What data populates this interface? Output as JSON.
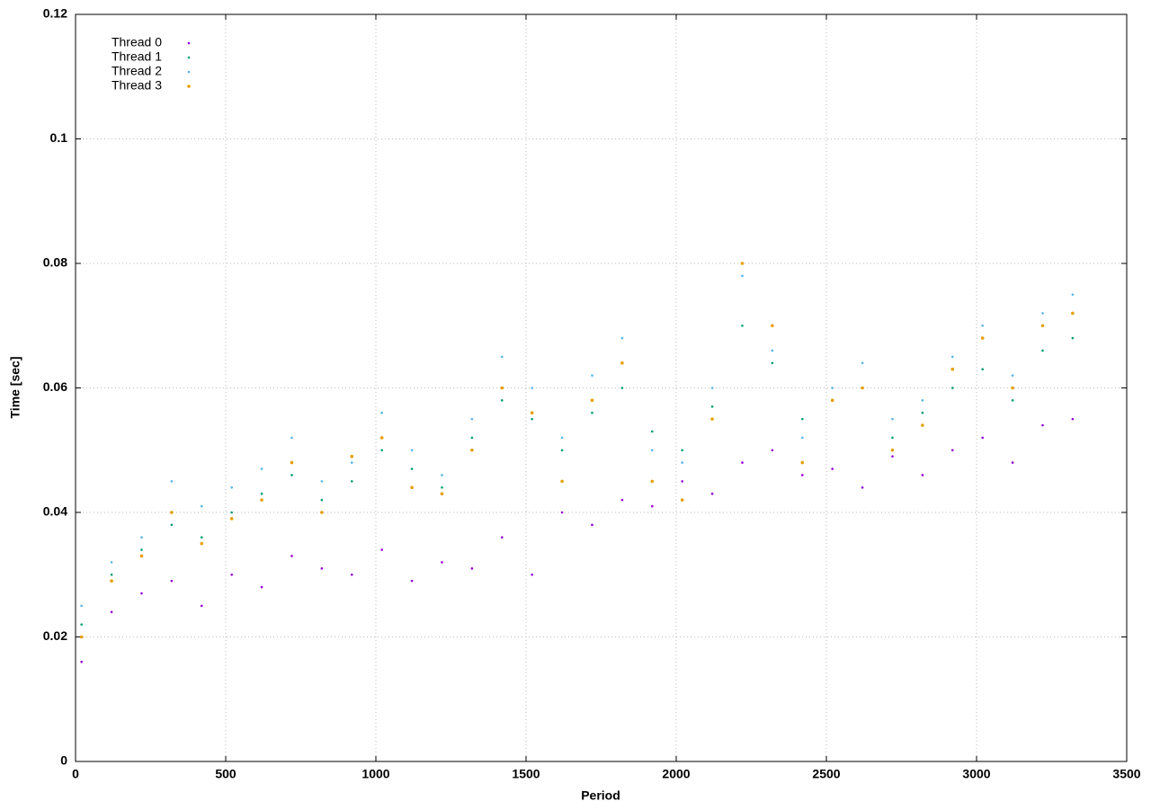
{
  "chart_data": {
    "type": "scatter",
    "x_label": "Period",
    "y_label": "Time [sec]",
    "xlim": [
      0,
      3500
    ],
    "xticks": [
      0,
      500,
      1000,
      1500,
      2000,
      2500,
      3000,
      3500
    ],
    "ylim": [
      0,
      0.12
    ],
    "yticks": [
      0,
      0.02,
      0.04,
      0.06,
      0.08,
      0.1,
      0.12
    ],
    "grid": true,
    "legend": "top-left",
    "x": [
      20,
      120,
      220,
      320,
      420,
      520,
      620,
      720,
      820,
      920,
      1020,
      1120,
      1220,
      1320,
      1420,
      1520,
      1620,
      1720,
      1820,
      1920,
      2020,
      2120,
      2220,
      2320,
      2420,
      2520,
      2620,
      2720,
      2820,
      2920,
      3020,
      3120,
      3220,
      3320
    ],
    "series": [
      {
        "name": "Thread 0",
        "color": "#9400d3",
        "values": [
          0.016,
          0.024,
          0.027,
          0.029,
          0.025,
          0.03,
          0.028,
          0.033,
          0.031,
          0.03,
          0.034,
          0.029,
          0.032,
          0.031,
          0.036,
          0.03,
          0.04,
          0.038,
          0.042,
          0.041,
          0.045,
          0.043,
          0.048,
          0.05,
          0.046,
          0.047,
          0.044,
          0.049,
          0.046,
          0.05,
          0.052,
          0.048,
          0.054,
          0.055
        ]
      },
      {
        "name": "Thread 1",
        "color": "#009e73",
        "values": [
          0.022,
          0.03,
          0.034,
          0.038,
          0.036,
          0.04,
          0.043,
          0.046,
          0.042,
          0.045,
          0.05,
          0.047,
          0.044,
          0.052,
          0.058,
          0.055,
          0.05,
          0.056,
          0.06,
          0.053,
          0.05,
          0.057,
          0.07,
          0.064,
          0.055,
          0.058,
          0.06,
          0.052,
          0.056,
          0.06,
          0.063,
          0.058,
          0.066,
          0.068
        ]
      },
      {
        "name": "Thread 2",
        "color": "#56b4e9",
        "values": [
          0.025,
          0.032,
          0.036,
          0.045,
          0.041,
          0.044,
          0.047,
          0.052,
          0.045,
          0.048,
          0.056,
          0.05,
          0.046,
          0.055,
          0.065,
          0.06,
          0.052,
          0.062,
          0.068,
          0.05,
          0.048,
          0.06,
          0.078,
          0.066,
          0.052,
          0.06,
          0.064,
          0.055,
          0.058,
          0.065,
          0.07,
          0.062,
          0.072,
          0.075
        ]
      },
      {
        "name": "Thread 3",
        "color": "#e69f00",
        "values": [
          0.02,
          0.029,
          0.033,
          0.04,
          0.035,
          0.039,
          0.042,
          0.048,
          0.04,
          0.049,
          0.052,
          0.044,
          0.043,
          0.05,
          0.06,
          0.056,
          0.045,
          0.058,
          0.064,
          0.045,
          0.042,
          0.055,
          0.08,
          0.07,
          0.048,
          0.058,
          0.06,
          0.05,
          0.054,
          0.063,
          0.068,
          0.06,
          0.07,
          0.072
        ]
      }
    ]
  }
}
